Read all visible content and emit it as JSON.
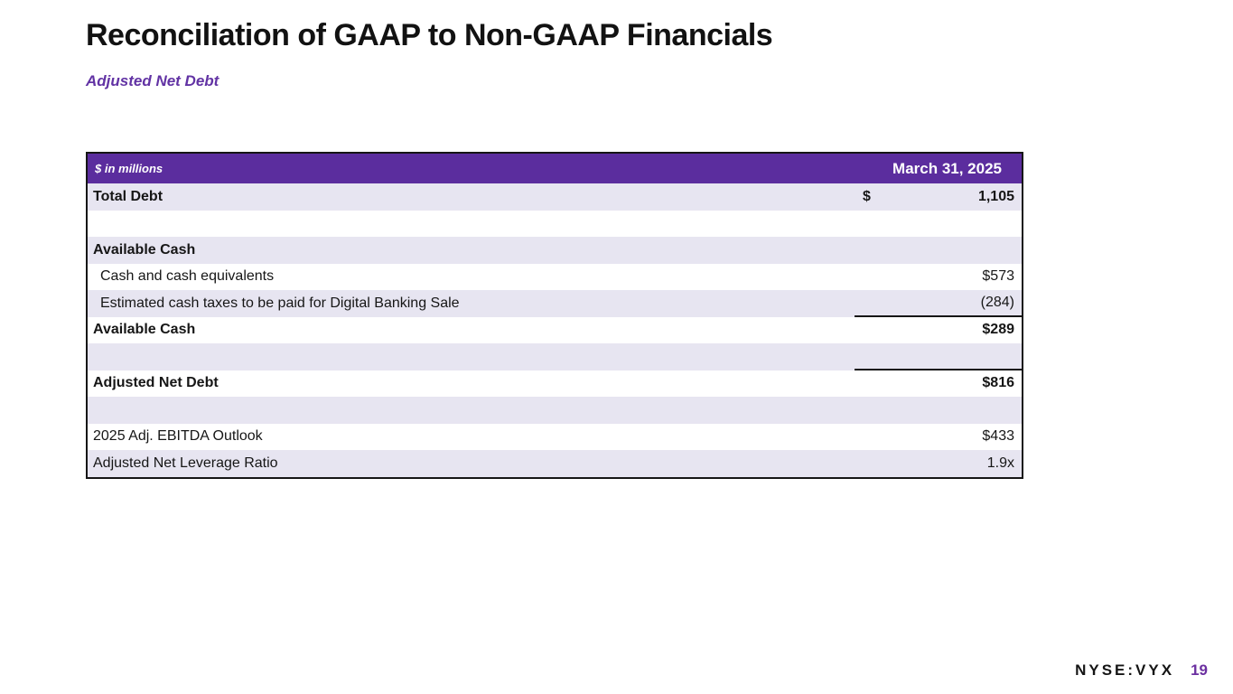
{
  "slide": {
    "title": "Reconciliation of GAAP to Non-GAAP Financials",
    "subtitle": "Adjusted Net Debt"
  },
  "table": {
    "header": {
      "units_label": "$ in millions",
      "period_label": "March 31, 2025"
    },
    "rows": [
      {
        "label": "Total Debt",
        "currency": "$",
        "value": "1,105",
        "bold": true,
        "indent": false,
        "underline_below_value": false
      },
      {
        "label": "",
        "currency": "",
        "value": "",
        "bold": false,
        "indent": false,
        "underline_below_value": false
      },
      {
        "label": "Available Cash",
        "currency": "",
        "value": "",
        "bold": true,
        "indent": false,
        "underline_below_value": false
      },
      {
        "label": "Cash and cash equivalents",
        "currency": "",
        "value": "$573",
        "bold": false,
        "indent": true,
        "underline_below_value": false
      },
      {
        "label": "Estimated cash taxes to be paid for Digital Banking Sale",
        "currency": "",
        "value": "(284)",
        "bold": false,
        "indent": true,
        "underline_below_value": true
      },
      {
        "label": "Available Cash",
        "currency": "",
        "value": "$289",
        "bold": true,
        "indent": false,
        "underline_below_value": false
      },
      {
        "label": "",
        "currency": "",
        "value": "",
        "bold": false,
        "indent": false,
        "underline_below_value": true
      },
      {
        "label": "Adjusted Net Debt",
        "currency": "",
        "value": "$816",
        "bold": true,
        "indent": false,
        "underline_below_value": false
      },
      {
        "label": "",
        "currency": "",
        "value": "",
        "bold": false,
        "indent": false,
        "underline_below_value": false
      },
      {
        "label": "2025 Adj. EBITDA Outlook",
        "currency": "",
        "value": "$433",
        "bold": false,
        "indent": false,
        "underline_below_value": false
      },
      {
        "label": "Adjusted Net Leverage Ratio",
        "currency": "",
        "value": "1.9x",
        "bold": false,
        "indent": false,
        "underline_below_value": false
      }
    ]
  },
  "footer": {
    "ticker": "NYSE:VYX",
    "page_number": "19"
  },
  "colors": {
    "header_purple": "#5b2d9e",
    "accent_purple": "#6233a4",
    "page_number_purple": "#6b2fa0",
    "row_lavender": "#e7e5f1",
    "border_black": "#161616"
  }
}
